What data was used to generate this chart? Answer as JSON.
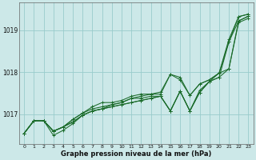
{
  "background_color": "#cce8e8",
  "grid_color": "#99cccc",
  "line_color": "#1a6b2a",
  "xlim": [
    -0.5,
    23.5
  ],
  "ylim": [
    1016.3,
    1019.65
  ],
  "yticks": [
    1017,
    1018,
    1019
  ],
  "xticks": [
    0,
    1,
    2,
    3,
    4,
    5,
    6,
    7,
    8,
    9,
    10,
    11,
    12,
    13,
    14,
    15,
    16,
    17,
    18,
    19,
    20,
    21,
    22,
    23
  ],
  "xlabel": "Graphe pression niveau de la mer (hPa)",
  "ytick_fontsize": 5.5,
  "xtick_fontsize": 4.5,
  "xlabel_fontsize": 6.0,
  "series": [
    [
      1016.55,
      1016.85,
      1016.85,
      1016.6,
      1016.7,
      1016.82,
      1016.98,
      1017.08,
      1017.13,
      1017.18,
      1017.23,
      1017.28,
      1017.33,
      1017.38,
      1017.43,
      1017.08,
      1017.55,
      1017.08,
      1017.52,
      1017.78,
      1017.88,
      1018.08,
      1019.18,
      1019.28
    ],
    [
      1016.55,
      1016.85,
      1016.85,
      1016.6,
      1016.7,
      1016.88,
      1017.03,
      1017.13,
      1017.18,
      1017.23,
      1017.28,
      1017.38,
      1017.43,
      1017.48,
      1017.48,
      1017.95,
      1017.82,
      1017.45,
      1017.72,
      1017.82,
      1017.98,
      1018.72,
      1019.32,
      1019.38
    ],
    [
      1016.55,
      1016.85,
      1016.85,
      1016.6,
      1016.7,
      1016.88,
      1017.03,
      1017.18,
      1017.28,
      1017.28,
      1017.33,
      1017.43,
      1017.48,
      1017.48,
      1017.53,
      1017.95,
      1017.88,
      1017.45,
      1017.72,
      1017.82,
      1017.98,
      1018.78,
      1019.32,
      1019.38
    ],
    [
      1016.55,
      1016.85,
      1016.85,
      1016.6,
      1016.7,
      1016.82,
      1016.98,
      1017.08,
      1017.13,
      1017.23,
      1017.28,
      1017.38,
      1017.38,
      1017.43,
      1017.43,
      1017.08,
      1017.55,
      1017.08,
      1017.57,
      1017.78,
      1017.88,
      1018.72,
      1019.22,
      1019.33
    ],
    [
      1016.55,
      1016.85,
      1016.85,
      1016.5,
      1016.62,
      1016.78,
      1016.98,
      1017.08,
      1017.13,
      1017.18,
      1017.23,
      1017.28,
      1017.33,
      1017.38,
      1017.43,
      1017.08,
      1017.55,
      1017.08,
      1017.52,
      1017.78,
      1017.98,
      1018.08,
      1019.22,
      1019.33
    ]
  ]
}
